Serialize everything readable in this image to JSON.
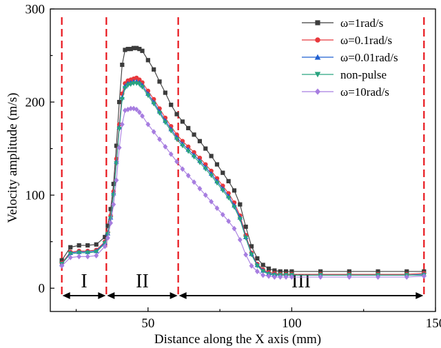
{
  "chart_data": {
    "type": "line",
    "title": "",
    "xlabel": "Distance along the X axis (mm)",
    "ylabel": "Velocity amplitude (m/s)",
    "xlim": [
      16,
      150
    ],
    "ylim": [
      -25,
      300
    ],
    "xticks": [
      50,
      100,
      150
    ],
    "yticks": [
      0,
      100,
      200,
      300
    ],
    "grid": false,
    "legend_position": "top-right",
    "region_boundaries": [
      20,
      35.5,
      60.5,
      146
    ],
    "regions": [
      {
        "label": "I",
        "from": 20,
        "to": 35.5
      },
      {
        "label": "II",
        "from": 35.5,
        "to": 60.5
      },
      {
        "label": "III",
        "from": 60.5,
        "to": 146
      }
    ],
    "x": [
      20,
      23,
      26,
      29,
      32,
      35,
      36,
      37,
      38,
      39,
      40,
      41,
      42,
      43,
      44,
      45,
      46,
      47,
      48,
      50,
      52,
      54,
      56,
      58,
      60,
      62,
      64,
      66,
      68,
      70,
      72,
      74,
      76,
      78,
      80,
      82,
      84,
      86,
      88,
      90,
      92,
      94,
      96,
      98,
      100,
      110,
      120,
      130,
      140,
      146
    ],
    "series": [
      {
        "name": "ω=1rad/s",
        "color": "#3c3c3c",
        "marker": "square",
        "values": [
          30,
          44,
          46,
          46,
          47,
          55,
          67,
          85,
          112,
          153,
          200,
          240,
          256,
          257,
          257,
          258,
          258,
          257,
          255,
          245,
          235,
          222,
          210,
          197,
          187,
          179,
          172,
          165,
          158,
          150,
          142,
          133,
          124,
          115,
          105,
          90,
          66,
          45,
          32,
          25,
          21,
          19,
          18,
          18,
          18,
          18,
          18,
          18,
          18,
          18
        ]
      },
      {
        "name": "ω=0.1rad/s",
        "color": "#e8383c",
        "marker": "circle",
        "values": [
          27,
          39,
          40,
          40,
          41,
          50,
          60,
          78,
          104,
          139,
          176,
          209,
          220,
          223,
          224,
          225,
          226,
          224,
          221,
          212,
          203,
          193,
          183,
          174,
          165,
          158,
          152,
          146,
          140,
          133,
          126,
          118,
          110,
          102,
          92,
          78,
          57,
          38,
          26,
          20,
          17,
          16,
          15,
          15,
          15,
          15,
          15,
          15,
          15,
          16
        ]
      },
      {
        "name": "ω=0.01rad/s",
        "color": "#1f5fd0",
        "marker": "triangle-up",
        "values": [
          26,
          38,
          39,
          39,
          40,
          49,
          59,
          76,
          102,
          136,
          173,
          205,
          217,
          220,
          221,
          222,
          222,
          221,
          218,
          209,
          200,
          190,
          180,
          171,
          162,
          155,
          149,
          143,
          137,
          130,
          123,
          115,
          107,
          99,
          89,
          76,
          55,
          37,
          25,
          19,
          16,
          15,
          14,
          14,
          14,
          14,
          14,
          14,
          14,
          15
        ]
      },
      {
        "name": "non-pulse",
        "color": "#29a37f",
        "marker": "triangle-down",
        "values": [
          26,
          37,
          38,
          38,
          39,
          48,
          58,
          75,
          100,
          134,
          171,
          203,
          215,
          218,
          219,
          220,
          220,
          219,
          216,
          207,
          198,
          188,
          178,
          169,
          160,
          153,
          147,
          141,
          135,
          128,
          121,
          113,
          105,
          97,
          87,
          74,
          54,
          36,
          24,
          18,
          15,
          14,
          14,
          14,
          14,
          14,
          14,
          14,
          14,
          14
        ]
      },
      {
        "name": "ω=10rad/s",
        "color": "#a77de0",
        "marker": "diamond",
        "values": [
          24,
          33,
          34,
          34,
          35,
          45,
          54,
          70,
          90,
          116,
          151,
          176,
          191,
          192,
          193,
          193,
          192,
          189,
          185,
          176,
          168,
          160,
          152,
          144,
          136,
          128,
          121,
          114,
          107,
          100,
          93,
          86,
          79,
          72,
          64,
          52,
          36,
          24,
          18,
          14,
          13,
          12,
          12,
          12,
          12,
          12,
          12,
          12,
          12,
          13
        ]
      }
    ]
  }
}
